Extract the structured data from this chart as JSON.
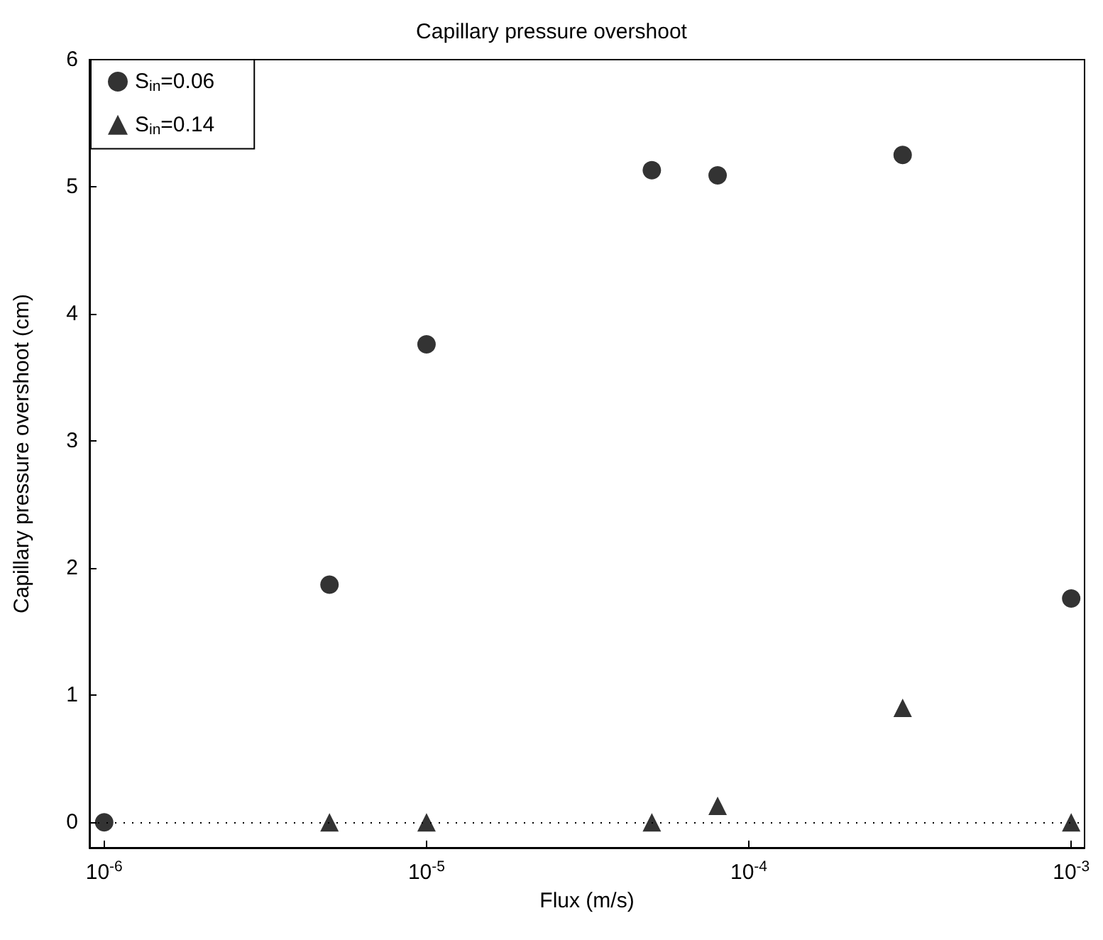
{
  "chart_data": {
    "type": "scatter",
    "title": "Capillary pressure overshoot",
    "xlabel": "Flux (m/s)",
    "ylabel": "Capillary pressure overshoot (cm)",
    "log": "x",
    "xlim": [
      9e-07,
      0.0011
    ],
    "xticks": [
      {
        "value": 1e-06,
        "label": "10$^{-6}$"
      },
      {
        "value": 1e-05,
        "label": "10$^{-5}$"
      },
      {
        "value": 0.0001,
        "label": "10$^{-4}$"
      },
      {
        "value": 0.001,
        "label": "10$^{-3}$"
      }
    ],
    "ylim": [
      -0.2,
      6
    ],
    "yticks": [
      0,
      1,
      2,
      3,
      4,
      5,
      6
    ],
    "grid": false,
    "legend": "top left",
    "series": [
      {
        "name": "S$_{in}$=0.06",
        "color": "#000000",
        "marker": "circle",
        "x": [
          1e-06,
          5e-06,
          1e-05,
          5e-05,
          8e-05,
          0.0003,
          0.001
        ],
        "values": [
          0,
          1.87,
          3.76,
          5.13,
          5.09,
          5.25,
          1.76
        ]
      },
      {
        "name": "S$_{in}$=0.14",
        "color": "#000000",
        "marker": "triangle",
        "x": [
          5e-06,
          1e-05,
          5e-05,
          8e-05,
          0.0003,
          0.001
        ],
        "values": [
          0,
          0,
          0,
          0.13,
          0.9,
          0
        ]
      }
    ],
    "ref_lines": [
      {
        "axis": "y",
        "value": 0,
        "color": "#000000",
        "line_style": "dotted"
      }
    ]
  }
}
